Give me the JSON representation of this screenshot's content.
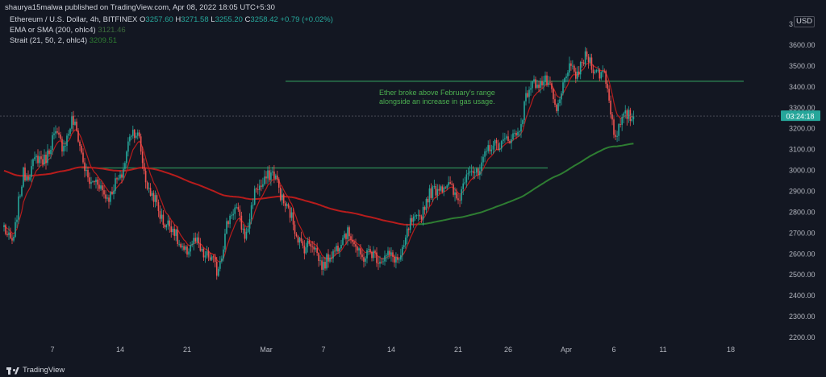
{
  "header": {
    "published": "shaurya15malwa published on TradingView.com, Apr 08, 2022 18:05 UTC+5:30",
    "symbol_line": "Ethereum / U.S. Dollar, 4h, BITFINEX",
    "ohlc": {
      "o_label": "O",
      "o": "3257.60",
      "h_label": "H",
      "h": "3271.58",
      "l_label": "L",
      "l": "3255.20",
      "c_label": "C",
      "c": "3258.42",
      "change": "+0.79 (+0.02%)"
    },
    "indicators": [
      {
        "label": "EMA or SMA (200, ohlc4)",
        "value": "3121.46"
      },
      {
        "label": "Strait (21, 50, 2, ohlc4)",
        "value": "3209.51"
      }
    ],
    "currency": "USD"
  },
  "footer": {
    "brand": "TradingView"
  },
  "colors": {
    "bull": "#26a69a",
    "bear": "#ef5350",
    "ema200": "#2e7d32",
    "strait_fast": "#b71c1c",
    "line_green": "#2e8b57",
    "label_bg": "#26a69a",
    "annotation": "#4caf50"
  },
  "chart_data": {
    "type": "candlestick",
    "title": "Ethereum / U.S. Dollar, 4h, BITFINEX",
    "price_axis": {
      "ticks": [
        2200,
        2300,
        2400,
        2500,
        2600,
        2700,
        2800,
        2900,
        3000,
        3100,
        3200,
        3300,
        3400,
        3500,
        3600
      ],
      "tick_labels": [
        "2200.00",
        "2300.00",
        "2400.00",
        "2500.00",
        "2600.00",
        "2700.00",
        "2800.00",
        "2900.00",
        "3000.00",
        "3100.00",
        "3200.00",
        "3300.00",
        "3400.00",
        "3500.00",
        "3600.00"
      ],
      "range": [
        2140,
        3700
      ],
      "top_partial_label": "3"
    },
    "time_axis": {
      "labels": [
        "7",
        "14",
        "21",
        "Mar",
        "7",
        "14",
        "21",
        "26",
        "Apr",
        "6",
        "11",
        "18"
      ]
    },
    "last_price": {
      "value": 3258.42,
      "timer": "03:24:18"
    },
    "annotation": {
      "lines": [
        "Ether broke above February's range",
        "alongside an increase in gas usage."
      ]
    },
    "horizontal_lines": [
      {
        "name": "",
        "price": 3425
      },
      {
        "name": "",
        "price": 3010
      }
    ],
    "anchors": [
      {
        "date": "2022-02-02",
        "close": 2740
      },
      {
        "date": "2022-02-03",
        "close": 2650
      },
      {
        "date": "2022-02-04",
        "close": 2990
      },
      {
        "date": "2022-02-05",
        "close": 3020
      },
      {
        "date": "2022-02-06",
        "close": 3050
      },
      {
        "date": "2022-02-07",
        "close": 3150
      },
      {
        "date": "2022-02-08",
        "close": 3120
      },
      {
        "date": "2022-02-09",
        "close": 3240
      },
      {
        "date": "2022-02-10",
        "close": 3080
      },
      {
        "date": "2022-02-11",
        "close": 2930
      },
      {
        "date": "2022-02-12",
        "close": 2920
      },
      {
        "date": "2022-02-13",
        "close": 2880
      },
      {
        "date": "2022-02-14",
        "close": 2950
      },
      {
        "date": "2022-02-15",
        "close": 3180
      },
      {
        "date": "2022-02-16",
        "close": 3140
      },
      {
        "date": "2022-02-17",
        "close": 2900
      },
      {
        "date": "2022-02-18",
        "close": 2800
      },
      {
        "date": "2022-02-19",
        "close": 2750
      },
      {
        "date": "2022-02-20",
        "close": 2650
      },
      {
        "date": "2022-02-21",
        "close": 2620
      },
      {
        "date": "2022-02-22",
        "close": 2640
      },
      {
        "date": "2022-02-23",
        "close": 2600
      },
      {
        "date": "2022-02-24",
        "close": 2500
      },
      {
        "date": "2022-02-25",
        "close": 2750
      },
      {
        "date": "2022-02-26",
        "close": 2800
      },
      {
        "date": "2022-02-27",
        "close": 2700
      },
      {
        "date": "2022-02-28",
        "close": 2900
      },
      {
        "date": "2022-03-01",
        "close": 2980
      },
      {
        "date": "2022-03-02",
        "close": 2950
      },
      {
        "date": "2022-03-03",
        "close": 2850
      },
      {
        "date": "2022-03-04",
        "close": 2700
      },
      {
        "date": "2022-03-05",
        "close": 2650
      },
      {
        "date": "2022-03-06",
        "close": 2620
      },
      {
        "date": "2022-03-07",
        "close": 2560
      },
      {
        "date": "2022-03-08",
        "close": 2580
      },
      {
        "date": "2022-03-09",
        "close": 2720
      },
      {
        "date": "2022-03-10",
        "close": 2650
      },
      {
        "date": "2022-03-11",
        "close": 2600
      },
      {
        "date": "2022-03-12",
        "close": 2580
      },
      {
        "date": "2022-03-13",
        "close": 2600
      },
      {
        "date": "2022-03-14",
        "close": 2560
      },
      {
        "date": "2022-03-15",
        "close": 2600
      },
      {
        "date": "2022-03-16",
        "close": 2720
      },
      {
        "date": "2022-03-17",
        "close": 2800
      },
      {
        "date": "2022-03-18",
        "close": 2860
      },
      {
        "date": "2022-03-19",
        "close": 2950
      },
      {
        "date": "2022-03-20",
        "close": 2900
      },
      {
        "date": "2022-03-21",
        "close": 2880
      },
      {
        "date": "2022-03-22",
        "close": 2990
      },
      {
        "date": "2022-03-23",
        "close": 3000
      },
      {
        "date": "2022-03-24",
        "close": 3080
      },
      {
        "date": "2022-03-25",
        "close": 3150
      },
      {
        "date": "2022-03-26",
        "close": 3120
      },
      {
        "date": "2022-03-27",
        "close": 3200
      },
      {
        "date": "2022-03-28",
        "close": 3350
      },
      {
        "date": "2022-03-29",
        "close": 3450
      },
      {
        "date": "2022-03-30",
        "close": 3400
      },
      {
        "date": "2022-03-31",
        "close": 3300
      },
      {
        "date": "2022-04-01",
        "close": 3450
      },
      {
        "date": "2022-04-02",
        "close": 3480
      },
      {
        "date": "2022-04-03",
        "close": 3520
      },
      {
        "date": "2022-04-04",
        "close": 3500
      },
      {
        "date": "2022-04-05",
        "close": 3450
      },
      {
        "date": "2022-04-06",
        "close": 3200
      },
      {
        "date": "2022-04-07",
        "close": 3230
      },
      {
        "date": "2022-04-08",
        "close": 3258
      }
    ]
  }
}
